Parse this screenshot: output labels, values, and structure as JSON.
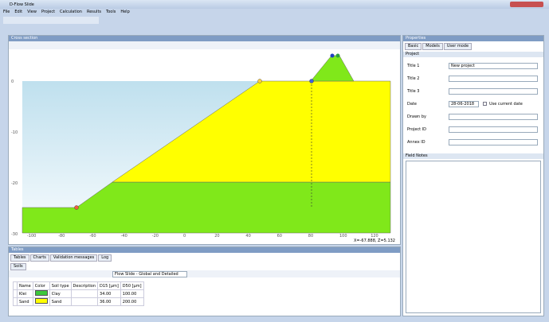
{
  "window": {
    "title": "D-Flow Slide"
  },
  "menu": [
    "File",
    "Edit",
    "View",
    "Project",
    "Calculation",
    "Results",
    "Tools",
    "Help"
  ],
  "cross_section": {
    "title": "Cross section",
    "coordinates": "X=-67.888, Z=5.132",
    "x_labels": [
      "-100",
      "-80",
      "-60",
      "-40",
      "-20",
      "0",
      "20",
      "40",
      "60",
      "80",
      "100",
      "120"
    ],
    "y_labels": [
      "0",
      "-10",
      "-20",
      "-30"
    ]
  },
  "tables": {
    "title": "Tables",
    "tabs": [
      "Tables",
      "Charts",
      "Validation messages",
      "Log"
    ],
    "subtab": "Soils",
    "dropdown": "Flow Slide - Global and Detailed",
    "headers": [
      "Name",
      "Color",
      "Soil type",
      "Description",
      "D15 [µm]",
      "D50 [µm]"
    ],
    "rows": [
      [
        "Klei",
        "Clay",
        "34.00",
        "100.00"
      ],
      [
        "Sand",
        "Sand",
        "36.00",
        "200.00"
      ]
    ]
  },
  "properties": {
    "title": "Properties",
    "tabs": [
      "Basic",
      "Models",
      "User mode"
    ],
    "group": "Project",
    "fields": [
      {
        "label": "Title 1",
        "value": "New project"
      },
      {
        "label": "Title 2"
      },
      {
        "label": "Title 3"
      },
      {
        "label": "Date",
        "value": "28-06-2018"
      },
      {
        "label": "Drawn by"
      },
      {
        "label": "Project ID"
      },
      {
        "label": "Annex ID"
      }
    ],
    "checkbox": "Use current date",
    "notes": "Field Notes"
  }
}
